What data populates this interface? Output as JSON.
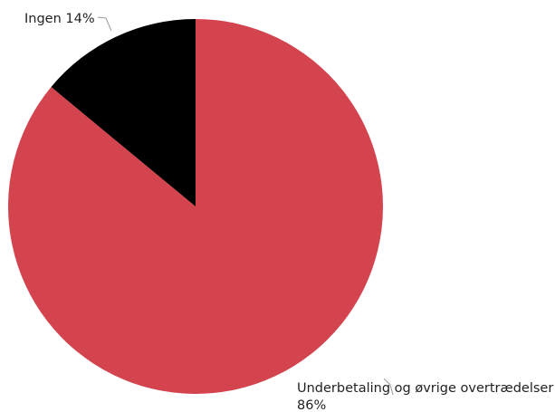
{
  "chart_data": {
    "type": "pie",
    "slices": [
      {
        "label": "Underbetaling og øvrige overtrædelser",
        "value": 86,
        "percent_text": "86%",
        "color": "#d4444f"
      },
      {
        "label": "Ingen",
        "value": 14,
        "percent_text": "14%",
        "color": "#000000"
      }
    ],
    "start": "12 o'clock",
    "direction": "clockwise",
    "legend": "none"
  }
}
